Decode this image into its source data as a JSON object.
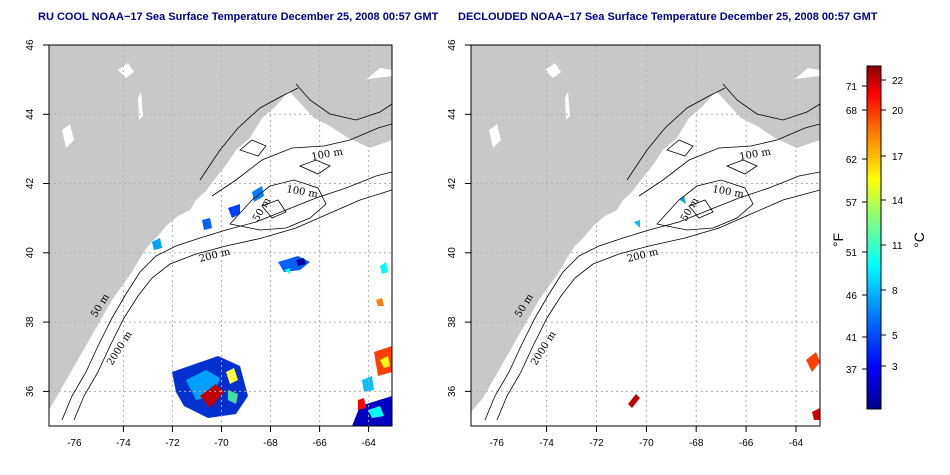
{
  "panels": [
    {
      "title": "RU COOL NOAA−17 Sea Surface Temperature December 25, 2008 00:57 GMT",
      "contour_labels": [
        "100 m",
        "100 m",
        "50 m",
        "200 m",
        "50 m",
        "2000 m"
      ]
    },
    {
      "title": "DECLOUDED NOAA−17 Sea Surface Temperature December 25, 2008 00:57 GMT",
      "contour_labels": [
        "100 m",
        "100 m",
        "50 m",
        "200 m",
        "50 m",
        "2000 m"
      ]
    }
  ],
  "axes": {
    "lon_ticks": [
      "-76",
      "-74",
      "-72",
      "-70",
      "-68",
      "-66",
      "-64"
    ],
    "lat_ticks": [
      "36",
      "38",
      "40",
      "42",
      "44",
      "46"
    ],
    "lon_range": [
      -77,
      -63
    ],
    "lat_range": [
      35,
      46
    ]
  },
  "colorbar": {
    "fahrenheit_ticks": [
      "71",
      "68",
      "62",
      "57",
      "51",
      "46",
      "41",
      "37"
    ],
    "celsius_ticks": [
      "22",
      "20",
      "17",
      "14",
      "11",
      "8",
      "5",
      "3"
    ],
    "fahrenheit_unit": "°F",
    "celsius_unit": "°C",
    "colors": [
      "#00008b",
      "#0000ff",
      "#0080ff",
      "#00ffff",
      "#80ff80",
      "#ffff00",
      "#ff8000",
      "#ff0000",
      "#8b0000"
    ]
  },
  "colors": {
    "land": "#c8c8c8",
    "ocean": "#ffffff",
    "grid": "#b0b0b0",
    "title": "#00008b"
  }
}
